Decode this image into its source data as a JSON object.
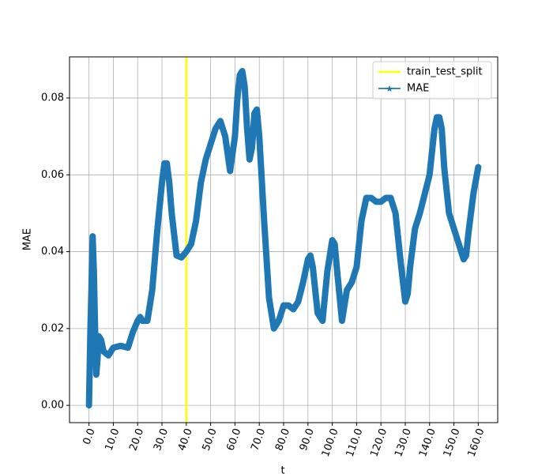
{
  "chart_data": {
    "type": "line",
    "xlabel": "t",
    "ylabel": "MAE",
    "x": [
      0,
      0.3,
      0.6,
      1,
      1.5,
      2,
      2.5,
      3,
      3.5,
      4,
      5,
      6,
      8,
      10,
      13,
      16,
      18,
      20,
      21,
      22,
      24,
      26,
      28,
      30,
      31,
      32,
      33,
      34,
      36,
      38,
      40,
      42,
      44,
      46,
      48,
      50,
      52,
      54,
      56,
      58,
      60,
      61,
      62,
      63,
      64,
      65,
      66,
      67,
      68,
      69,
      70,
      72,
      74,
      76,
      78,
      80,
      82,
      84,
      86,
      88,
      90,
      91,
      92,
      94,
      96,
      98,
      100,
      101,
      102,
      104,
      105,
      106,
      108,
      110,
      112,
      114,
      116,
      118,
      120,
      122,
      124,
      126,
      128,
      130,
      131,
      132,
      134,
      136,
      138,
      140,
      142,
      143,
      144,
      145,
      146,
      148,
      150,
      152,
      154,
      155,
      156,
      158,
      160
    ],
    "series": [
      {
        "name": "MAE",
        "color": "#1f77b4",
        "marker": "*",
        "values": [
          0.0,
          0.01,
          0.02,
          0.03,
          0.044,
          0.035,
          0.02,
          0.008,
          0.012,
          0.018,
          0.017,
          0.014,
          0.013,
          0.015,
          0.0155,
          0.015,
          0.019,
          0.022,
          0.023,
          0.022,
          0.022,
          0.03,
          0.045,
          0.058,
          0.063,
          0.063,
          0.058,
          0.05,
          0.039,
          0.0385,
          0.04,
          0.042,
          0.048,
          0.058,
          0.064,
          0.068,
          0.072,
          0.074,
          0.07,
          0.061,
          0.07,
          0.08,
          0.086,
          0.087,
          0.083,
          0.072,
          0.064,
          0.067,
          0.076,
          0.077,
          0.07,
          0.048,
          0.028,
          0.02,
          0.022,
          0.026,
          0.026,
          0.025,
          0.027,
          0.032,
          0.038,
          0.039,
          0.036,
          0.024,
          0.022,
          0.035,
          0.043,
          0.042,
          0.035,
          0.022,
          0.026,
          0.03,
          0.032,
          0.036,
          0.048,
          0.054,
          0.054,
          0.053,
          0.053,
          0.054,
          0.054,
          0.05,
          0.038,
          0.027,
          0.029,
          0.036,
          0.046,
          0.05,
          0.055,
          0.06,
          0.072,
          0.075,
          0.075,
          0.072,
          0.062,
          0.05,
          0.046,
          0.042,
          0.038,
          0.039,
          0.045,
          0.055,
          0.062
        ]
      }
    ],
    "vline": {
      "name": "train_test_split",
      "x": 40,
      "color": "#ffff00"
    },
    "xlim": [
      -8,
      168
    ],
    "ylim": [
      -0.0045,
      0.0907
    ],
    "xticks": [
      {
        "value": 0,
        "label": "0.0"
      },
      {
        "value": 10,
        "label": "10.0"
      },
      {
        "value": 20,
        "label": "20.0"
      },
      {
        "value": 30,
        "label": "30.0"
      },
      {
        "value": 40,
        "label": "40.0"
      },
      {
        "value": 50,
        "label": "50.0"
      },
      {
        "value": 60,
        "label": "60.0"
      },
      {
        "value": 70,
        "label": "70.0"
      },
      {
        "value": 80,
        "label": "80.0"
      },
      {
        "value": 90,
        "label": "90.0"
      },
      {
        "value": 100,
        "label": "100.0"
      },
      {
        "value": 110,
        "label": "110.0"
      },
      {
        "value": 120,
        "label": "120.0"
      },
      {
        "value": 130,
        "label": "130.0"
      },
      {
        "value": 140,
        "label": "140.0"
      },
      {
        "value": 150,
        "label": "150.0"
      },
      {
        "value": 160,
        "label": "160.0"
      }
    ],
    "yticks": [
      {
        "value": 0,
        "label": "0.00"
      },
      {
        "value": 0.02,
        "label": "0.02"
      },
      {
        "value": 0.04,
        "label": "0.04"
      },
      {
        "value": 0.06,
        "label": "0.06"
      },
      {
        "value": 0.08,
        "label": "0.08"
      }
    ],
    "grid": true,
    "legend": "upper right"
  }
}
